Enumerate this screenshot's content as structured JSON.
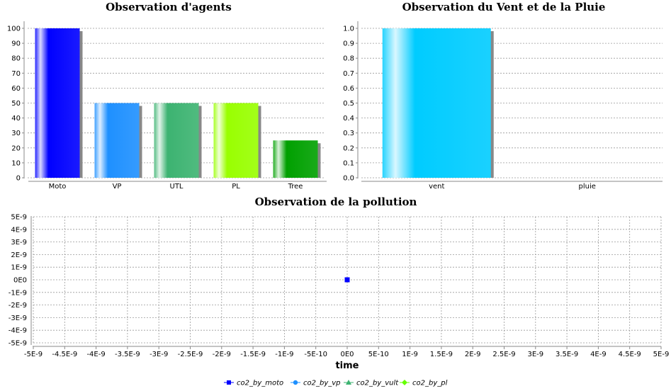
{
  "chart_data": [
    {
      "type": "bar",
      "title": "Observation d'agents",
      "categories": [
        "Moto",
        "VP",
        "UTL",
        "PL",
        "Tree"
      ],
      "values": [
        100,
        50,
        50,
        50,
        25
      ],
      "ylim": [
        0,
        100
      ],
      "yticks": [
        "0",
        "10",
        "20",
        "30",
        "40",
        "50",
        "60",
        "70",
        "80",
        "90",
        "100"
      ],
      "grid": true,
      "colors": [
        "#0000ff",
        "#1e90ff",
        "#3cb371",
        "#99ff00",
        "#00a000"
      ]
    },
    {
      "type": "bar",
      "title": "Observation du Vent et de la Pluie",
      "categories": [
        "vent",
        "pluie"
      ],
      "values": [
        1.0,
        0.0
      ],
      "ylim": [
        0,
        1.0
      ],
      "yticks": [
        "0.0",
        "0.1",
        "0.2",
        "0.3",
        "0.4",
        "0.5",
        "0.6",
        "0.7",
        "0.8",
        "0.9",
        "1.0"
      ],
      "grid": true,
      "colors": [
        "#00ccff",
        "#00ccff"
      ]
    },
    {
      "type": "line",
      "title": "Observation de la pollution",
      "xlabel": "time",
      "ylabel": "",
      "xlim": [
        -5e-09,
        5e-09
      ],
      "ylim": [
        -5e-09,
        5e-09
      ],
      "xticks": [
        "-5E-9",
        "-4.5E-9",
        "-4E-9",
        "-3.5E-9",
        "-3E-9",
        "-2.5E-9",
        "-2E-9",
        "-1.5E-9",
        "-1E-9",
        "-5E-10",
        "0E0",
        "5E-10",
        "1E-9",
        "1.5E-9",
        "2E-9",
        "2.5E-9",
        "3E-9",
        "3.5E-9",
        "4E-9",
        "4.5E-9",
        "5E-9"
      ],
      "yticks": [
        "-5E-9",
        "-4E-9",
        "-3E-9",
        "-2E-9",
        "-1E-9",
        "0E0",
        "1E-9",
        "2E-9",
        "3E-9",
        "4E-9",
        "5E-9"
      ],
      "grid": true,
      "legend_position": "bottom",
      "series": [
        {
          "name": "co2_by_moto",
          "x": [
            0
          ],
          "y": [
            0
          ],
          "color": "#0000ff",
          "marker": "square"
        },
        {
          "name": "co2_by_vp",
          "x": [],
          "y": [],
          "color": "#1e90ff",
          "marker": "circle"
        },
        {
          "name": "co2_by_vult",
          "x": [],
          "y": [],
          "color": "#3cb371",
          "marker": "triangle"
        },
        {
          "name": "co2_by_pl",
          "x": [],
          "y": [],
          "color": "#66ff00",
          "marker": "diamond"
        }
      ]
    }
  ]
}
